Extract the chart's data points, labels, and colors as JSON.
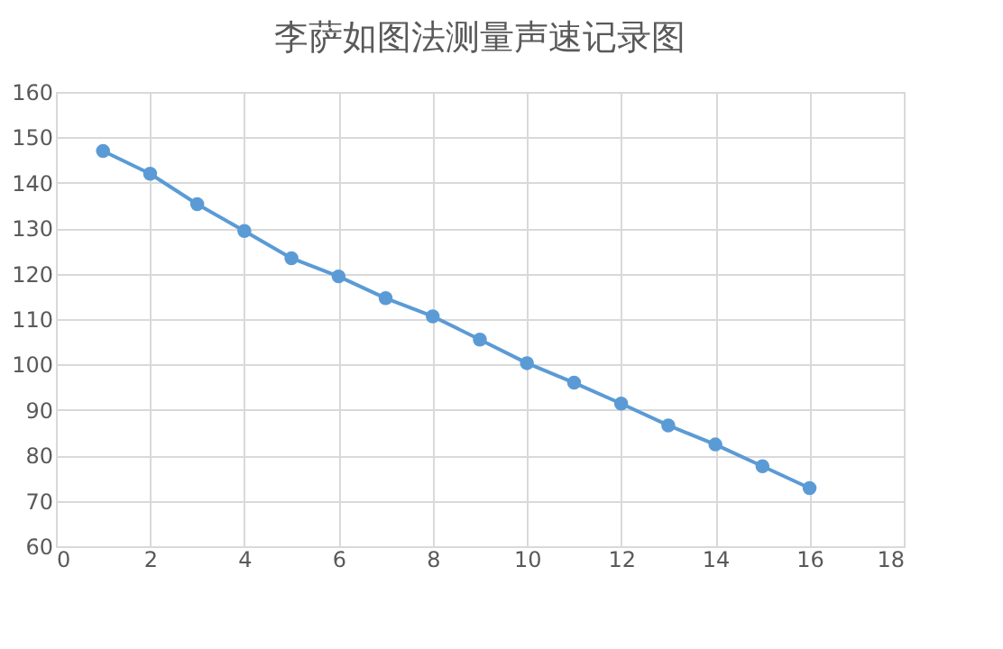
{
  "chart_data": {
    "type": "line",
    "title": "李萨如图法测量声速记录图",
    "x": [
      1,
      2,
      3,
      4,
      5,
      6,
      7,
      8,
      9,
      10,
      11,
      12,
      13,
      14,
      15,
      16
    ],
    "series": [
      {
        "color": "#5b9bd5",
        "values": [
          147,
          142,
          135.3,
          129.4,
          123.4,
          119.4,
          114.6,
          110.6,
          105.5,
          100.3,
          96,
          91.4,
          86.6,
          82.4,
          77.6,
          72.8
        ]
      }
    ],
    "xlim": [
      0,
      18
    ],
    "xticks": [
      0,
      2,
      4,
      6,
      8,
      10,
      12,
      14,
      16,
      18
    ],
    "ylim": [
      60,
      160
    ],
    "yticks": [
      60,
      70,
      80,
      90,
      100,
      110,
      120,
      130,
      140,
      150,
      160
    ],
    "grid": true,
    "marker": "circle",
    "line_style": "solid"
  }
}
